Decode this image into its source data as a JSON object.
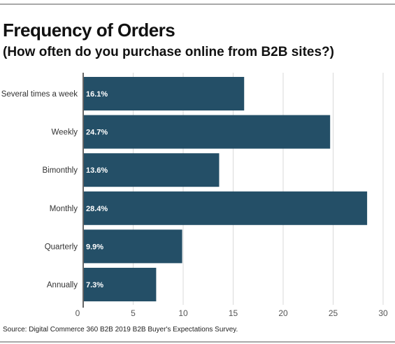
{
  "header": {
    "title": "Frequency of Orders",
    "subtitle": "(How often do you purchase online from B2B sites?)"
  },
  "footer": {
    "source": "Source: Digital Commerce 360 B2B 2019 B2B Buyer's Expectations Survey."
  },
  "chart_data": {
    "type": "bar",
    "orientation": "horizontal",
    "title": "Frequency of Orders",
    "subtitle": "(How often do you purchase online from B2B sites?)",
    "categories": [
      "Several times a week",
      "Weekly",
      "Bimonthly",
      "Monthly",
      "Quarterly",
      "Annually"
    ],
    "values": [
      16.1,
      24.7,
      13.6,
      28.4,
      9.9,
      7.3
    ],
    "data_labels": [
      "16.1%",
      "24.7%",
      "13.6%",
      "28.4%",
      "9.9%",
      "7.3%"
    ],
    "xlim": [
      0,
      30
    ],
    "xticks": [
      "0",
      "5",
      "10",
      "15",
      "20",
      "25",
      "30"
    ],
    "grid": true,
    "bar_color": "#244f67",
    "grid_color": "#d9d9d9",
    "legend": "none"
  }
}
